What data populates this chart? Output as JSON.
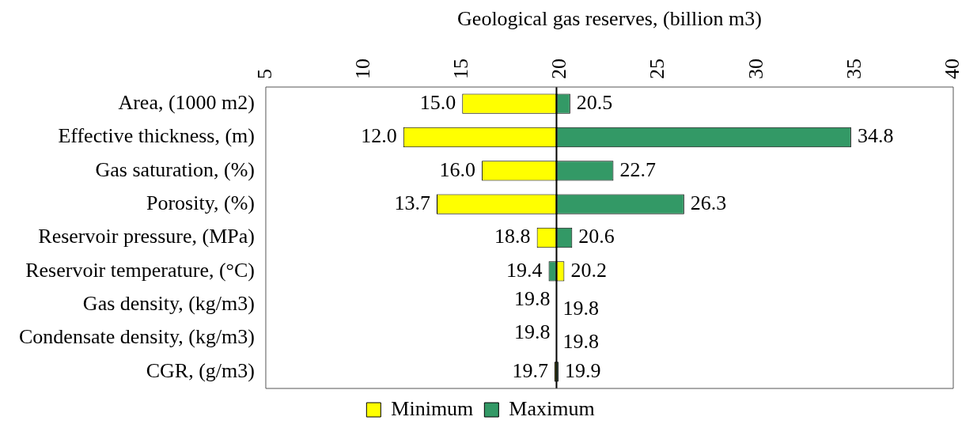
{
  "chart_data": {
    "type": "bar",
    "orientation": "horizontal",
    "xlabel": "Geological gas reserves, (billion m3)",
    "categories": [
      "Area, (1000 m2)",
      "Effective thickness, (m)",
      "Gas saturation, (%)",
      "Porosity, (%)",
      "Reservoir pressure, (MPa)",
      "Reservoir temperature, (°C)",
      "Gas density, (kg/m3)",
      "Condensate density, (kg/m3)",
      "CGR, (g/m3)"
    ],
    "series": [
      {
        "name": "Minimum",
        "color": "#ffff00",
        "base": [
          19.8,
          19.8,
          19.8,
          19.8,
          19.8,
          19.8,
          null,
          null,
          19.8
        ],
        "values": [
          -4.8,
          -7.8,
          -3.8,
          -6.1,
          -1.0,
          0.4,
          null,
          null,
          -0.1
        ],
        "value_labels": [
          "15.0",
          "12.0",
          "16.0",
          "13.7",
          "18.8",
          "20.2",
          "19.8",
          "19.8",
          "19.7"
        ]
      },
      {
        "name": "Maximum",
        "color": "#339966",
        "base": [
          19.8,
          19.8,
          19.8,
          19.8,
          19.8,
          19.8,
          null,
          null,
          19.8
        ],
        "values": [
          0.7,
          15.0,
          2.9,
          6.5,
          0.8,
          -0.4,
          null,
          null,
          0.1
        ],
        "value_labels": [
          "20.5",
          "34.8",
          "22.7",
          "26.3",
          "20.6",
          "19.4",
          "19.8",
          "19.8",
          "19.9"
        ]
      }
    ],
    "xlim": [
      5,
      40
    ],
    "xticks": [
      5,
      10,
      15,
      20,
      25,
      30,
      35,
      40
    ],
    "ref_lines": [
      {
        "axis": "x",
        "value": 19.8,
        "color": "#000000"
      }
    ],
    "grid": false,
    "legend": "bottom"
  }
}
